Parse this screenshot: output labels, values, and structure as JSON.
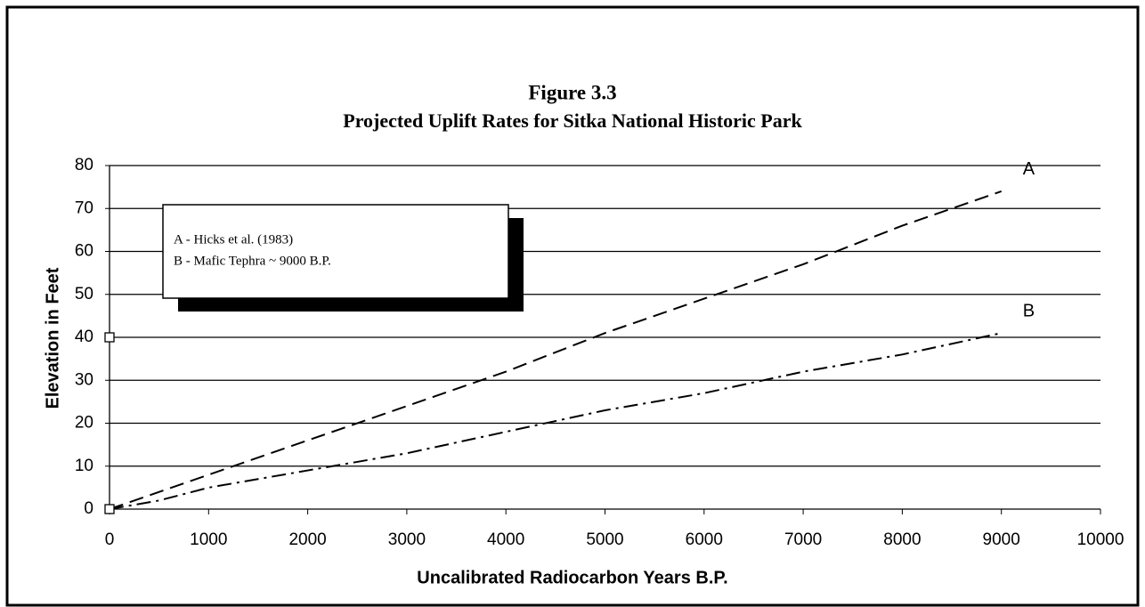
{
  "chart_data": {
    "type": "line",
    "title": "Figure 3.3",
    "subtitle": "Projected Uplift Rates for Sitka National Historic Park",
    "x_label": "Uncalibrated Radiocarbon Years B.P.",
    "y_label": "Elevation in Feet",
    "xlim": [
      0,
      10000
    ],
    "xticks": [
      0,
      1000,
      2000,
      3000,
      4000,
      5000,
      6000,
      7000,
      8000,
      9000,
      10000
    ],
    "ylim": [
      0,
      80
    ],
    "yticks": [
      0,
      10,
      20,
      30,
      40,
      50,
      60,
      70,
      80
    ],
    "grid": true,
    "annotations": [
      "A - Hicks et al. (1983)",
      "B - Mafic Tephra ~ 9000 B.P."
    ],
    "series": [
      {
        "name": "A",
        "color": "#000000",
        "line_style": "dashed",
        "x": [
          0,
          1000,
          2000,
          3000,
          4000,
          5000,
          6000,
          7000,
          8000,
          9000
        ],
        "values": [
          0,
          8,
          16,
          24,
          32,
          41,
          49,
          57,
          66,
          74
        ]
      },
      {
        "name": "B",
        "color": "#000000",
        "line_style": "dashdot",
        "x": [
          0,
          500,
          1000,
          2000,
          3000,
          4000,
          5000,
          6000,
          7000,
          8000,
          9000
        ],
        "values": [
          0,
          2,
          5,
          9,
          13,
          18,
          23,
          27,
          32,
          36,
          41
        ]
      },
      {
        "color": "#000000",
        "marker": "square",
        "x": [
          0,
          0
        ],
        "values": [
          40,
          0
        ]
      }
    ]
  }
}
